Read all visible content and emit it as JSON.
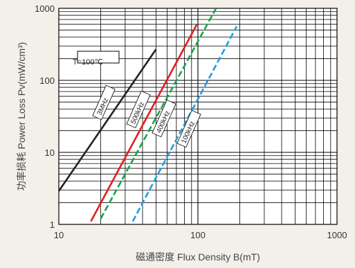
{
  "chart_data": {
    "type": "line",
    "title": "",
    "xlabel": "磁通密度  Flux Density B(mT)",
    "ylabel": "功率损耗  Power Loss Pv(mW/cm³)",
    "x_scale": "log",
    "y_scale": "log",
    "xlim": [
      10,
      1000
    ],
    "ylim": [
      1,
      1000
    ],
    "x_ticks": [
      "10",
      "100",
      "1000"
    ],
    "y_ticks": [
      "1",
      "10",
      "100",
      "1000"
    ],
    "grid": true,
    "annotation": "T=100℃",
    "series": [
      {
        "name": "3MHz",
        "color": "#222222",
        "dash": false,
        "x": [
          10,
          50
        ],
        "y": [
          2.9,
          270
        ]
      },
      {
        "name": "500kHz",
        "color": "#e01e1e",
        "dash": false,
        "x": [
          17,
          98
        ],
        "y": [
          1.1,
          590
        ]
      },
      {
        "name": "400kHz",
        "color": "#17a34a",
        "dash": true,
        "x": [
          20,
          135
        ],
        "y": [
          1.2,
          1000
        ]
      },
      {
        "name": "100kHz",
        "color": "#1a9fe0",
        "dash": true,
        "x": [
          34,
          190
        ],
        "y": [
          1.1,
          560
        ]
      }
    ]
  }
}
